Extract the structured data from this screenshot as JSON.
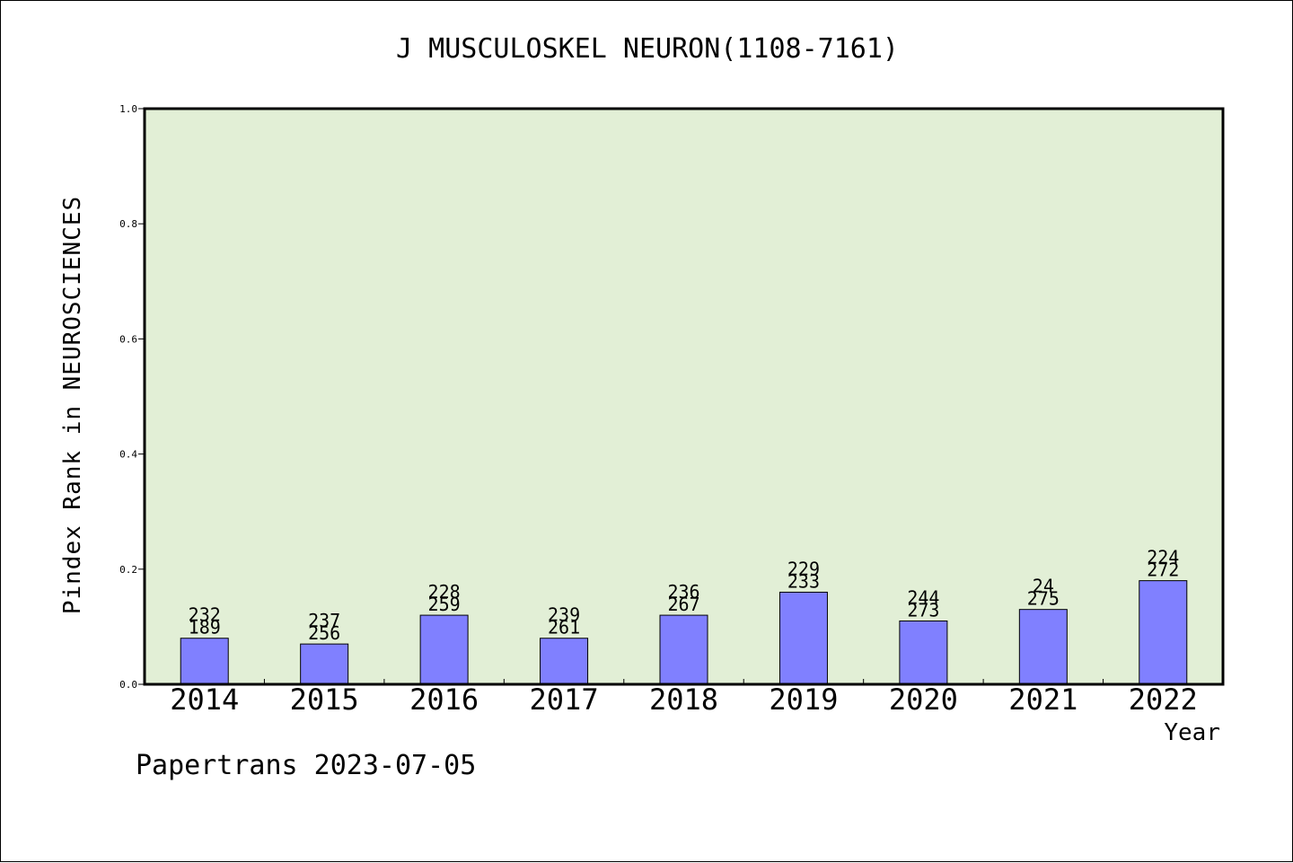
{
  "chart_data": {
    "type": "bar",
    "title": "J MUSCULOSKEL NEURON(1108-7161)",
    "xlabel": "Year",
    "ylabel": "Pindex Rank in NEUROSCIENCES",
    "ylim": [
      0,
      1.0
    ],
    "yticks": [
      "0.0",
      "0.2",
      "0.4",
      "0.6",
      "0.8",
      "1.0"
    ],
    "categories": [
      "2014",
      "2015",
      "2016",
      "2017",
      "2018",
      "2019",
      "2020",
      "2021",
      "2022"
    ],
    "values": [
      0.08,
      0.07,
      0.12,
      0.08,
      0.12,
      0.16,
      0.11,
      0.13,
      0.18
    ],
    "labels_top": [
      "232",
      "237",
      "228",
      "239",
      "236",
      "229",
      "244",
      "24",
      "224"
    ],
    "labels_bottom": [
      "189",
      "256",
      "259",
      "261",
      "267",
      "233",
      "273",
      "275",
      "272"
    ],
    "grid": false,
    "colors": {
      "plot_background": "#e2efd6",
      "bar": "#8080ff",
      "bar_edge": "#000000"
    }
  },
  "footer": "Papertrans 2023-07-05"
}
